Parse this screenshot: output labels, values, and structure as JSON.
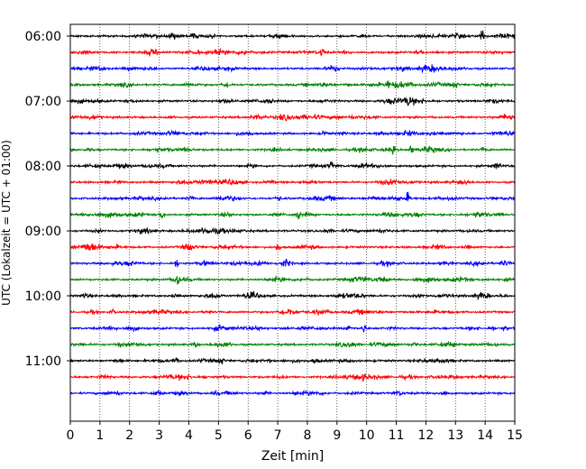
{
  "chart_data": {
    "type": "line",
    "title": "",
    "xlabel": "Zeit  [min]",
    "ylabel": "UTC (Lokalzeit = UTC + 01:00)",
    "xlim": [
      0,
      15
    ],
    "x_ticks": [
      0,
      1,
      2,
      3,
      4,
      5,
      6,
      7,
      8,
      9,
      10,
      11,
      12,
      13,
      14,
      15
    ],
    "x_grid": true,
    "y_grid": false,
    "row_interval_minutes": 15,
    "y_tick_labels": [
      "06:00",
      "07:00",
      "08:00",
      "09:00",
      "10:00",
      "11:00"
    ],
    "y_tick_rows": [
      0,
      4,
      8,
      12,
      16,
      20
    ],
    "trace_colors": [
      "#000000",
      "#ff0000",
      "#0000ff",
      "#008000"
    ],
    "rows": [
      {
        "start": "06:00",
        "events": [
          13.9
        ]
      },
      {
        "start": "06:15",
        "events": [
          8.5
        ]
      },
      {
        "start": "06:30",
        "events": [
          8.9
        ]
      },
      {
        "start": "06:45",
        "events": [
          10.7,
          13.0
        ]
      },
      {
        "start": "07:00",
        "events": [
          11.4
        ]
      },
      {
        "start": "07:15",
        "events": []
      },
      {
        "start": "07:30",
        "events": []
      },
      {
        "start": "07:45",
        "events": [
          10.9,
          11.5
        ]
      },
      {
        "start": "08:00",
        "events": [
          8.8
        ]
      },
      {
        "start": "08:15",
        "events": []
      },
      {
        "start": "08:30",
        "events": [
          11.4
        ]
      },
      {
        "start": "08:45",
        "events": [
          3.1,
          7.7
        ]
      },
      {
        "start": "09:00",
        "events": []
      },
      {
        "start": "09:15",
        "events": [
          7.0
        ]
      },
      {
        "start": "09:30",
        "events": [
          3.6
        ]
      },
      {
        "start": "09:45",
        "events": [
          3.6
        ]
      },
      {
        "start": "10:00",
        "events": []
      },
      {
        "start": "10:15",
        "events": []
      },
      {
        "start": "10:30",
        "events": [
          9.4,
          9.9
        ]
      },
      {
        "start": "10:45",
        "events": [
          4.2
        ]
      },
      {
        "start": "11:00",
        "events": [
          5.1
        ]
      },
      {
        "start": "11:15",
        "events": []
      },
      {
        "start": "11:30",
        "events": []
      }
    ]
  }
}
